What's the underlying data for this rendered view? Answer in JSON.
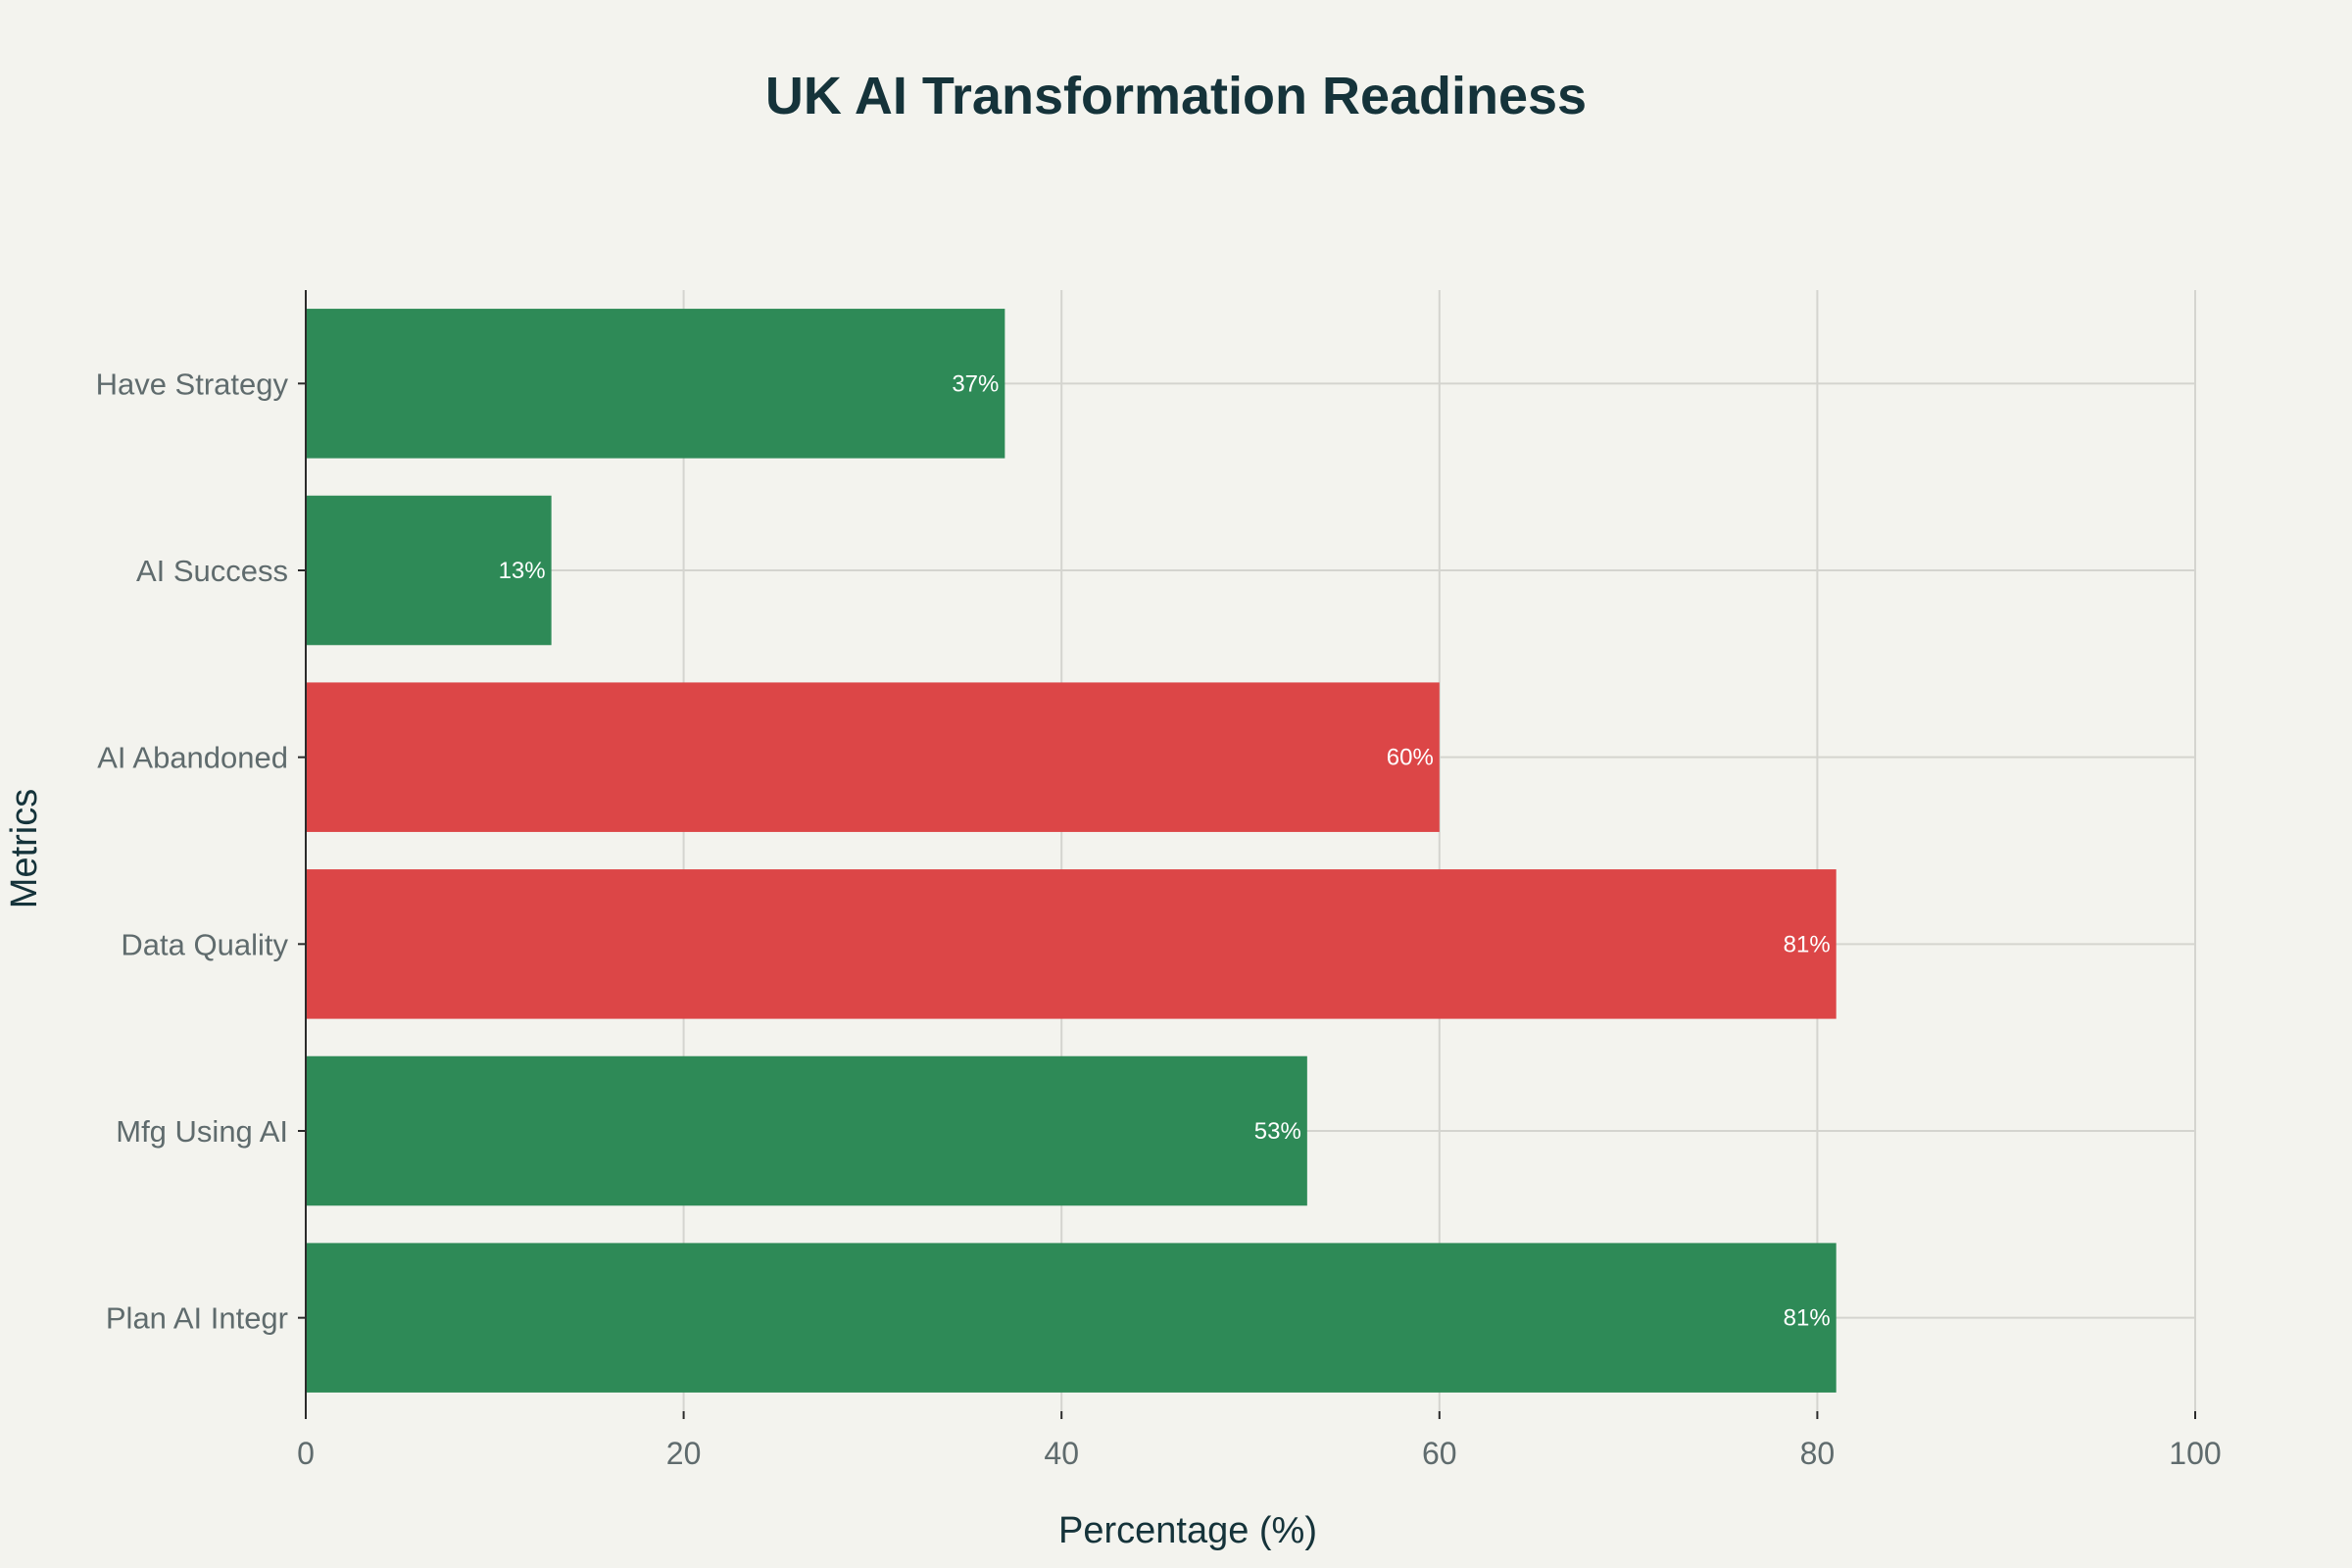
{
  "chart_data": {
    "type": "bar",
    "orientation": "horizontal",
    "title": "UK AI Transformation Readiness",
    "xlabel": "Percentage (%)",
    "ylabel": "Metrics",
    "xlim": [
      0,
      100
    ],
    "x_ticks": [
      0,
      20,
      40,
      60,
      80,
      100
    ],
    "grid": true,
    "categories": [
      "Have Strategy",
      "AI Success",
      "AI Abandoned",
      "Data Quality",
      "Mfg Using AI",
      "Plan AI Integr"
    ],
    "values": [
      37,
      13,
      60,
      81,
      53,
      81
    ],
    "data_labels": [
      "37%",
      "13%",
      "60%",
      "81%",
      "53%",
      "81%"
    ],
    "bar_colors": [
      "#2e8a57",
      "#2e8a57",
      "#dc4647",
      "#dc4647",
      "#2e8a57",
      "#2e8a57"
    ],
    "legend": "none"
  }
}
